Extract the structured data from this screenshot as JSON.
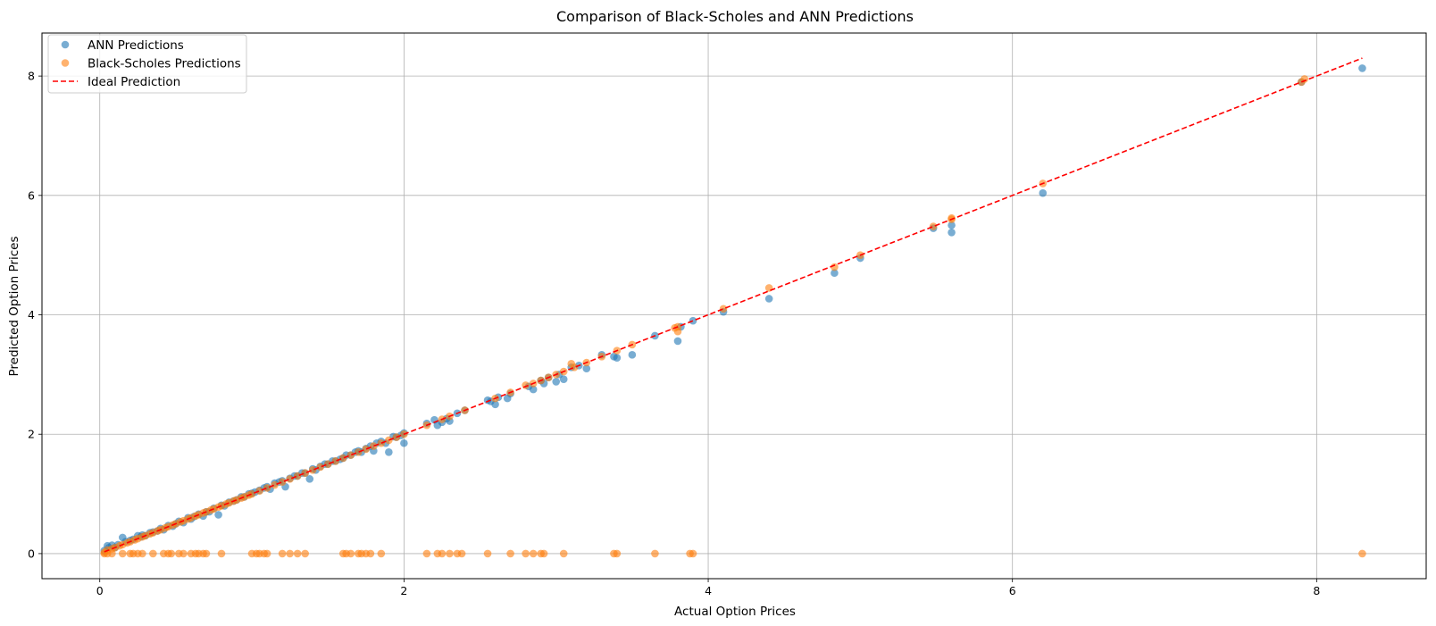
{
  "chart_data": {
    "type": "scatter",
    "title": "Comparison of Black-Scholes and ANN Predictions",
    "xlabel": "Actual Option Prices",
    "ylabel": "Predicted Option Prices",
    "xlim": [
      -0.38,
      8.72
    ],
    "ylim": [
      -0.42,
      8.72
    ],
    "xticks": [
      0,
      2,
      4,
      6,
      8
    ],
    "yticks": [
      0,
      2,
      4,
      6,
      8
    ],
    "grid": true,
    "legend_position": "top-left",
    "series": [
      {
        "name": "ANN Predictions",
        "kind": "scatter",
        "color": "#1f77b4",
        "x": [
          0.03,
          0.05,
          0.06,
          0.08,
          0.1,
          0.12,
          0.15,
          0.17,
          0.2,
          0.22,
          0.25,
          0.27,
          0.28,
          0.3,
          0.33,
          0.35,
          0.38,
          0.4,
          0.42,
          0.45,
          0.48,
          0.5,
          0.52,
          0.55,
          0.58,
          0.6,
          0.62,
          0.65,
          0.68,
          0.7,
          0.72,
          0.75,
          0.78,
          0.8,
          0.82,
          0.85,
          0.88,
          0.9,
          0.93,
          0.95,
          0.98,
          1.0,
          1.02,
          1.05,
          1.08,
          1.1,
          1.12,
          1.15,
          1.18,
          1.2,
          1.22,
          1.25,
          1.28,
          1.3,
          1.33,
          1.35,
          1.38,
          1.4,
          1.42,
          1.45,
          1.48,
          1.5,
          1.53,
          1.55,
          1.58,
          1.6,
          1.62,
          1.65,
          1.68,
          1.7,
          1.72,
          1.75,
          1.78,
          1.8,
          1.82,
          1.85,
          1.88,
          1.9,
          1.93,
          1.95,
          1.98,
          2.0,
          2.0,
          2.15,
          2.2,
          2.22,
          2.25,
          2.28,
          2.3,
          2.35,
          2.4,
          2.55,
          2.57,
          2.6,
          2.62,
          2.68,
          2.7,
          2.82,
          2.85,
          2.9,
          2.92,
          2.95,
          3.0,
          3.02,
          3.05,
          3.1,
          3.15,
          3.2,
          3.3,
          3.38,
          3.4,
          3.5,
          3.65,
          3.8,
          3.82,
          3.9,
          4.1,
          4.4,
          4.83,
          5.0,
          5.48,
          5.6,
          5.6,
          6.2,
          7.9,
          8.3
        ],
        "y": [
          0.05,
          0.13,
          0.1,
          0.14,
          0.1,
          0.15,
          0.27,
          0.2,
          0.22,
          0.24,
          0.3,
          0.28,
          0.31,
          0.3,
          0.35,
          0.36,
          0.38,
          0.42,
          0.4,
          0.47,
          0.46,
          0.5,
          0.54,
          0.52,
          0.6,
          0.58,
          0.62,
          0.66,
          0.63,
          0.7,
          0.7,
          0.76,
          0.65,
          0.81,
          0.8,
          0.86,
          0.88,
          0.9,
          0.95,
          0.95,
          1.0,
          1.01,
          1.03,
          1.06,
          1.1,
          1.12,
          1.08,
          1.18,
          1.2,
          1.22,
          1.12,
          1.26,
          1.3,
          1.3,
          1.35,
          1.35,
          1.25,
          1.42,
          1.4,
          1.46,
          1.5,
          1.5,
          1.55,
          1.55,
          1.58,
          1.6,
          1.65,
          1.65,
          1.7,
          1.72,
          1.7,
          1.76,
          1.8,
          1.72,
          1.85,
          1.88,
          1.85,
          1.7,
          1.96,
          1.95,
          1.98,
          2.02,
          1.85,
          2.18,
          2.24,
          2.15,
          2.2,
          2.26,
          2.22,
          2.35,
          2.4,
          2.57,
          2.55,
          2.5,
          2.62,
          2.6,
          2.68,
          2.8,
          2.75,
          2.9,
          2.85,
          2.95,
          2.88,
          3.0,
          2.92,
          3.12,
          3.15,
          3.1,
          3.33,
          3.3,
          3.28,
          3.33,
          3.65,
          3.56,
          3.8,
          3.9,
          4.05,
          4.27,
          4.7,
          4.95,
          5.45,
          5.5,
          5.38,
          6.04,
          7.9,
          8.13
        ]
      },
      {
        "name": "Black-Scholes Predictions",
        "kind": "scatter",
        "color": "#ff7f0e",
        "x": [
          0.03,
          0.05,
          0.08,
          0.1,
          0.13,
          0.15,
          0.18,
          0.2,
          0.23,
          0.25,
          0.28,
          0.3,
          0.33,
          0.35,
          0.38,
          0.4,
          0.43,
          0.45,
          0.48,
          0.5,
          0.53,
          0.55,
          0.58,
          0.6,
          0.63,
          0.65,
          0.68,
          0.7,
          0.73,
          0.75,
          0.78,
          0.8,
          0.83,
          0.85,
          0.88,
          0.9,
          0.93,
          0.95,
          0.98,
          1.0,
          1.05,
          1.1,
          1.15,
          1.2,
          1.25,
          1.3,
          1.35,
          1.4,
          1.45,
          1.5,
          1.55,
          1.6,
          1.65,
          1.7,
          1.75,
          1.8,
          1.85,
          1.9,
          1.95,
          2.0,
          2.15,
          2.25,
          2.3,
          2.4,
          2.6,
          2.7,
          2.8,
          2.85,
          2.9,
          2.95,
          3.0,
          3.05,
          3.1,
          3.12,
          3.2,
          3.3,
          3.4,
          3.5,
          3.8,
          3.8,
          3.78,
          4.1,
          4.4,
          4.83,
          5.0,
          5.48,
          5.6,
          5.6,
          6.2,
          7.9,
          7.92,
          0.03,
          0.05,
          0.08,
          0.15,
          0.2,
          0.22,
          0.25,
          0.28,
          0.35,
          0.42,
          0.45,
          0.47,
          0.52,
          0.55,
          0.6,
          0.63,
          0.65,
          0.68,
          0.7,
          0.8,
          1.0,
          1.03,
          1.05,
          1.08,
          1.1,
          1.2,
          1.25,
          1.3,
          1.35,
          1.6,
          1.62,
          1.65,
          1.7,
          1.72,
          1.75,
          1.78,
          1.85,
          2.15,
          2.22,
          2.25,
          2.3,
          2.35,
          2.38,
          2.55,
          2.7,
          2.8,
          2.85,
          2.9,
          2.92,
          3.05,
          3.38,
          3.4,
          3.65,
          3.88,
          3.9,
          8.3
        ],
        "y": [
          0.02,
          0.06,
          0.08,
          0.1,
          0.13,
          0.15,
          0.18,
          0.2,
          0.23,
          0.25,
          0.28,
          0.3,
          0.33,
          0.35,
          0.38,
          0.4,
          0.43,
          0.45,
          0.48,
          0.5,
          0.53,
          0.55,
          0.58,
          0.6,
          0.63,
          0.65,
          0.68,
          0.7,
          0.73,
          0.75,
          0.78,
          0.8,
          0.83,
          0.85,
          0.88,
          0.9,
          0.93,
          0.95,
          0.98,
          1.0,
          1.05,
          1.1,
          1.15,
          1.2,
          1.25,
          1.3,
          1.35,
          1.4,
          1.45,
          1.5,
          1.55,
          1.6,
          1.65,
          1.7,
          1.75,
          1.8,
          1.85,
          1.9,
          1.95,
          2.0,
          2.15,
          2.25,
          2.3,
          2.4,
          2.6,
          2.7,
          2.82,
          2.85,
          2.9,
          2.95,
          3.0,
          3.05,
          3.18,
          3.12,
          3.2,
          3.3,
          3.4,
          3.5,
          3.8,
          3.72,
          3.78,
          4.1,
          4.45,
          4.8,
          5.0,
          5.48,
          5.6,
          5.62,
          6.2,
          7.9,
          7.95,
          0,
          0,
          0,
          0,
          0,
          0,
          0,
          0,
          0,
          0,
          0,
          0,
          0,
          0,
          0,
          0,
          0,
          0,
          0,
          0,
          0,
          0,
          0,
          0,
          0,
          0,
          0,
          0,
          0,
          0,
          0,
          0,
          0,
          0,
          0,
          0,
          0,
          0,
          0,
          0,
          0,
          0,
          0,
          0,
          0,
          0,
          0,
          0,
          0,
          0,
          0,
          0,
          0,
          0,
          0,
          0
        ]
      },
      {
        "name": "Ideal Prediction",
        "kind": "line",
        "style": "dashed",
        "color": "#ff0000",
        "x": [
          0.03,
          8.3
        ],
        "y": [
          0.03,
          8.3
        ]
      }
    ]
  }
}
